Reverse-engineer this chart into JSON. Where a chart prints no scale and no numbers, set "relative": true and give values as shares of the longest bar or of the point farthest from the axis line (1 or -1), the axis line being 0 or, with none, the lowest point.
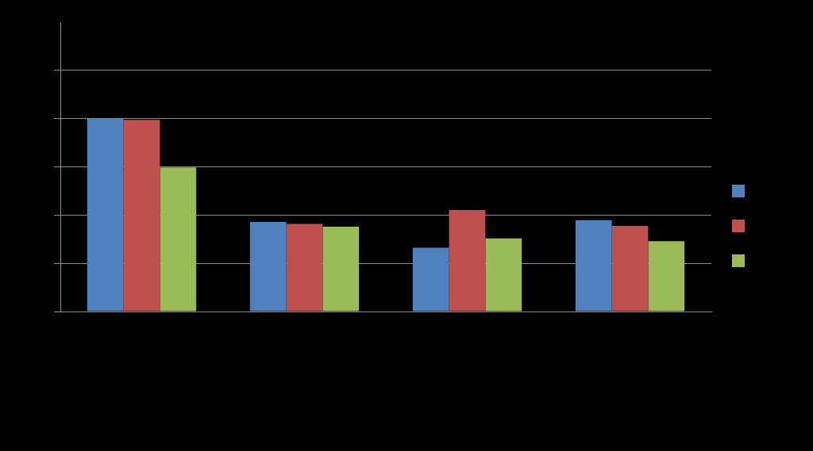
{
  "chart_data": {
    "type": "bar",
    "relative": true,
    "categories": [
      null,
      null,
      null,
      null
    ],
    "series": [
      {
        "color": "#4f81bd",
        "values": [
          1.0,
          0.464,
          0.331,
          0.474
        ]
      },
      {
        "color": "#c0504d",
        "values": [
          0.993,
          0.454,
          0.526,
          0.444
        ]
      },
      {
        "color": "#9bbb59",
        "values": [
          0.747,
          0.44,
          0.379,
          0.365
        ]
      }
    ],
    "grid": "y"
  }
}
